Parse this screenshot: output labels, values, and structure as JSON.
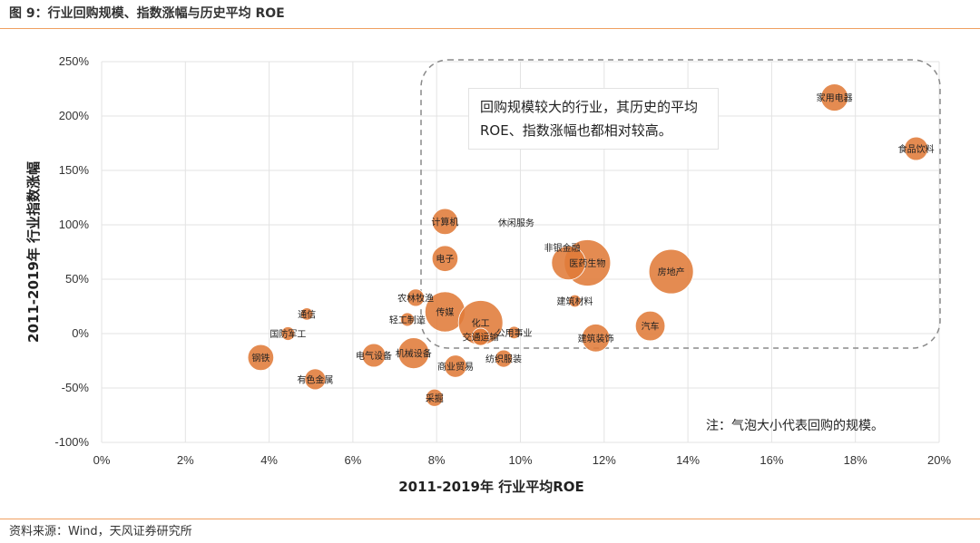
{
  "header": {
    "title": "图 9：行业回购规模、指数涨幅与历史平均 ROE"
  },
  "footer": {
    "source": "资料来源：Wind，天风证券研究所"
  },
  "colors": {
    "bubble": "#e07b39",
    "rule": "#f0a060",
    "grid": "#e3e3e3",
    "dashed_box": "#8a8a8a"
  },
  "chart_data": {
    "type": "scatter",
    "xlabel": "2011-2019年 行业平均ROE",
    "ylabel": "2011-2019年 行业指数涨幅",
    "xlim": [
      0,
      20
    ],
    "ylim": [
      -100,
      250
    ],
    "x_ticks": [
      "0%",
      "2%",
      "4%",
      "6%",
      "8%",
      "10%",
      "12%",
      "14%",
      "16%",
      "18%",
      "20%"
    ],
    "y_ticks": [
      "-100%",
      "-50%",
      "0%",
      "50%",
      "100%",
      "150%",
      "200%",
      "250%"
    ],
    "grid": true,
    "legend": "none",
    "annotation": "回购规模较大的行业，其历史的平均ROE、指数涨幅也都相对较高。",
    "annotation_lines": [
      "回购规模较大的行业，其历史的平均",
      "ROE、指数涨幅也都相对较高。"
    ],
    "note": "注：气泡大小代表回购的规模。",
    "points": [
      {
        "label": "家用电器",
        "x": 17.5,
        "y": 217,
        "size": 0.44
      },
      {
        "label": "食品饮料",
        "x": 19.45,
        "y": 170,
        "size": 0.38
      },
      {
        "label": "计算机",
        "x": 8.2,
        "y": 103,
        "size": 0.42
      },
      {
        "label": "休闲服务",
        "x": 9.9,
        "y": 102,
        "size": 0
      },
      {
        "label": "非银金融",
        "x": 11.0,
        "y": 79,
        "size": 0
      },
      {
        "label": "电子",
        "x": 8.2,
        "y": 69,
        "size": 0.42
      },
      {
        "label": "医药生物",
        "x": 11.6,
        "y": 65,
        "size": 0.75
      },
      {
        "label": "非银金融",
        "x": 11.15,
        "y": 65,
        "size": 0.55
      },
      {
        "label": "房地产",
        "x": 13.6,
        "y": 57,
        "size": 0.72
      },
      {
        "label": "建筑材料",
        "x": 11.3,
        "y": 30,
        "size": 0.2
      },
      {
        "label": "农林牧渔",
        "x": 7.5,
        "y": 33,
        "size": 0.28
      },
      {
        "label": "传媒",
        "x": 8.2,
        "y": 20,
        "size": 0.65
      },
      {
        "label": "通信",
        "x": 4.9,
        "y": 18,
        "size": 0.2
      },
      {
        "label": "轻工制造",
        "x": 7.3,
        "y": 13,
        "size": 0.22
      },
      {
        "label": "化工",
        "x": 9.05,
        "y": 10,
        "size": 0.72
      },
      {
        "label": "汽车",
        "x": 13.1,
        "y": 7,
        "size": 0.48
      },
      {
        "label": "公用事业",
        "x": 9.85,
        "y": 1,
        "size": 0.2
      },
      {
        "label": "国防军工",
        "x": 4.45,
        "y": 0,
        "size": 0.22
      },
      {
        "label": "交通运输",
        "x": 9.05,
        "y": -3,
        "size": 0.28
      },
      {
        "label": "建筑装饰",
        "x": 11.8,
        "y": -4,
        "size": 0.45
      },
      {
        "label": "电气设备",
        "x": 6.5,
        "y": -20,
        "size": 0.38
      },
      {
        "label": "机械设备",
        "x": 7.45,
        "y": -18,
        "size": 0.5
      },
      {
        "label": "钢铁",
        "x": 3.8,
        "y": -22,
        "size": 0.42
      },
      {
        "label": "纺织服装",
        "x": 9.6,
        "y": -23,
        "size": 0.28
      },
      {
        "label": "商业贸易",
        "x": 8.45,
        "y": -30,
        "size": 0.36
      },
      {
        "label": "有色金属",
        "x": 5.1,
        "y": -42,
        "size": 0.34
      },
      {
        "label": "采掘",
        "x": 7.95,
        "y": -59,
        "size": 0.28
      }
    ]
  }
}
